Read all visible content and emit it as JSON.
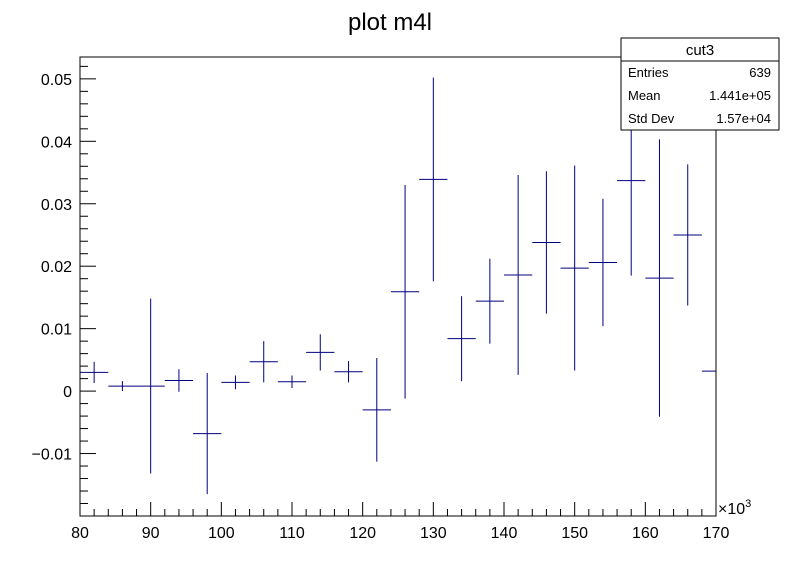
{
  "title": "plot m4l",
  "axis_multiplier": "×10",
  "axis_multiplier_exp": "3",
  "stats": {
    "name": "cut3",
    "rows": [
      {
        "label": "Entries",
        "value": "639"
      },
      {
        "label": "Mean",
        "value": "1.441e+05"
      },
      {
        "label": "Std Dev",
        "value": "1.57e+04"
      }
    ]
  },
  "chart_data": {
    "type": "scatter",
    "title": "plot m4l",
    "xlabel": "",
    "ylabel": "",
    "xlim": [
      80,
      170
    ],
    "ylim": [
      -0.02,
      0.0535
    ],
    "grid": false,
    "line_color": "#00007f",
    "x_ticks": [
      80,
      90,
      100,
      110,
      120,
      130,
      140,
      150,
      160,
      170
    ],
    "y_ticks": [
      -0.01,
      0,
      0.01,
      0.02,
      0.03,
      0.04,
      0.05
    ],
    "x_tick_labels": [
      "80",
      "90",
      "100",
      "110",
      "120",
      "130",
      "140",
      "150",
      "160",
      "170"
    ],
    "y_tick_labels": [
      "−0.01",
      "0",
      "0.01",
      "0.02",
      "0.03",
      "0.04",
      "0.05"
    ],
    "bin_width": 4,
    "points": [
      {
        "x": 82,
        "y": 0.003,
        "err": 0.0017
      },
      {
        "x": 86,
        "y": 0.0008,
        "err": 0.0008
      },
      {
        "x": 90,
        "y": 0.0008,
        "err": 0.014
      },
      {
        "x": 94,
        "y": 0.0017,
        "err": 0.0018
      },
      {
        "x": 98,
        "y": -0.0068,
        "err": 0.0097
      },
      {
        "x": 102,
        "y": 0.0014,
        "err": 0.0011
      },
      {
        "x": 106,
        "y": 0.0047,
        "err": 0.0033
      },
      {
        "x": 110,
        "y": 0.0015,
        "err": 0.001
      },
      {
        "x": 114,
        "y": 0.0062,
        "err": 0.0029
      },
      {
        "x": 118,
        "y": 0.0031,
        "err": 0.0017
      },
      {
        "x": 122,
        "y": -0.003,
        "err": 0.0083
      },
      {
        "x": 126,
        "y": 0.0159,
        "err": 0.0171
      },
      {
        "x": 130,
        "y": 0.0339,
        "err": 0.0163
      },
      {
        "x": 134,
        "y": 0.0084,
        "err": 0.0068
      },
      {
        "x": 138,
        "y": 0.0144,
        "err": 0.0068
      },
      {
        "x": 142,
        "y": 0.0186,
        "err": 0.016
      },
      {
        "x": 146,
        "y": 0.0238,
        "err": 0.0114
      },
      {
        "x": 150,
        "y": 0.0197,
        "err": 0.0164
      },
      {
        "x": 154,
        "y": 0.0206,
        "err": 0.0102
      },
      {
        "x": 158,
        "y": 0.0337,
        "err": 0.0152
      },
      {
        "x": 162,
        "y": 0.0181,
        "err": 0.0222
      },
      {
        "x": 166,
        "y": 0.025,
        "err": 0.0113
      },
      {
        "x": 170,
        "y": 0.0032,
        "err": 0.0115
      }
    ]
  }
}
